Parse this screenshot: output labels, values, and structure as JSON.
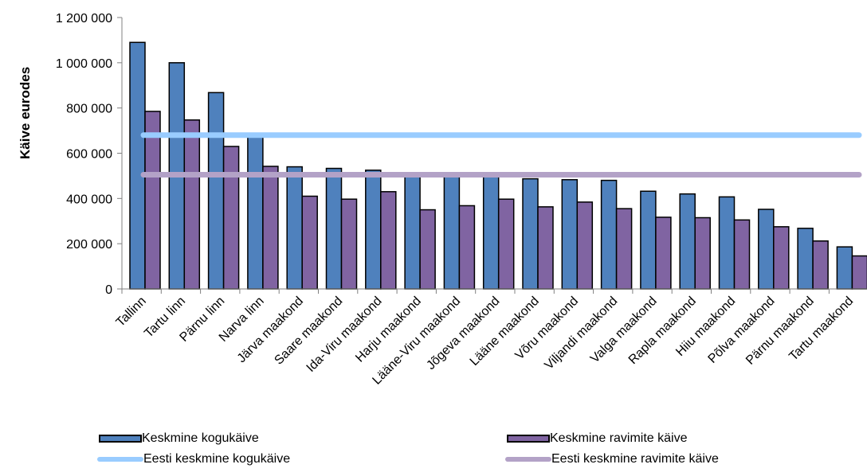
{
  "chart_data": {
    "type": "bar",
    "title": "",
    "xlabel": "",
    "ylabel": "Käive eurodes",
    "ylim": [
      0,
      1200000
    ],
    "yticks": [
      0,
      200000,
      400000,
      600000,
      800000,
      1000000,
      1200000
    ],
    "ytick_labels": [
      "0",
      "200 000",
      "400 000",
      "600 000",
      "800 000",
      "1 000 000",
      "1 200 000"
    ],
    "categories": [
      "Tallinn",
      "Tartu linn",
      "Pärnu linn",
      "Narva linn",
      "Järva maakond",
      "Saare maakond",
      "Ida-Viru maakond",
      "Harju maakond",
      "Lääne-Viru maakond",
      "Jõgeva maakond",
      "Lääne maakond",
      "Võru maakond",
      "Viljandi maakond",
      "Valga maakond",
      "Rapla maakond",
      "Hiiu maakond",
      "Põlva maakond",
      "Pärnu maakond",
      "Tartu maakond"
    ],
    "series": [
      {
        "name": "Keskmine kogukäive",
        "color": "#4F81BD",
        "values": [
          1090000,
          1000000,
          868000,
          672000,
          540000,
          533000,
          525000,
          510000,
          505000,
          500000,
          487000,
          483000,
          480000,
          432000,
          420000,
          407000,
          352000,
          268000,
          186000
        ]
      },
      {
        "name": "Keskmine ravimite käive",
        "color": "#8064A2",
        "values": [
          785000,
          747000,
          630000,
          542000,
          410000,
          397000,
          430000,
          350000,
          368000,
          397000,
          363000,
          384000,
          355000,
          317000,
          315000,
          305000,
          275000,
          212000,
          146000
        ]
      }
    ],
    "reference_lines": [
      {
        "name": "Eesti keskmine kogukäive",
        "value": 680000,
        "color": "#99CCFF"
      },
      {
        "name": "Eesti keskmine ravimite käive",
        "value": 505000,
        "color": "#B3A2C7"
      }
    ],
    "grid": false,
    "legend_position": "bottom"
  },
  "legend": {
    "items": [
      {
        "label": "Keskmine kogukäive"
      },
      {
        "label": "Keskmine ravimite käive"
      },
      {
        "label": "Eesti keskmine kogukäive"
      },
      {
        "label": "Eesti keskmine ravimite käive"
      }
    ]
  }
}
